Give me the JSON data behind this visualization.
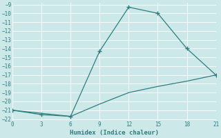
{
  "line1_x": [
    0,
    3,
    6,
    9,
    12,
    15,
    18,
    21
  ],
  "line1_y": [
    -21,
    -21.5,
    -21.7,
    -14.3,
    -9.3,
    -10,
    -14,
    -17
  ],
  "line2_x": [
    0,
    6,
    9,
    12,
    15,
    18,
    21
  ],
  "line2_y": [
    -21,
    -21.7,
    -20.3,
    -19,
    -18.3,
    -17.7,
    -17
  ],
  "color": "#2d7d7d",
  "xlabel": "Humidex (Indice chaleur)",
  "bg_color": "#cce8e8",
  "xlim": [
    0,
    21
  ],
  "ylim": [
    -22.2,
    -8.8
  ],
  "xticks": [
    0,
    3,
    6,
    9,
    12,
    15,
    18,
    21
  ],
  "yticks": [
    -22,
    -21,
    -20,
    -19,
    -18,
    -17,
    -16,
    -15,
    -14,
    -13,
    -12,
    -11,
    -10,
    -9
  ]
}
